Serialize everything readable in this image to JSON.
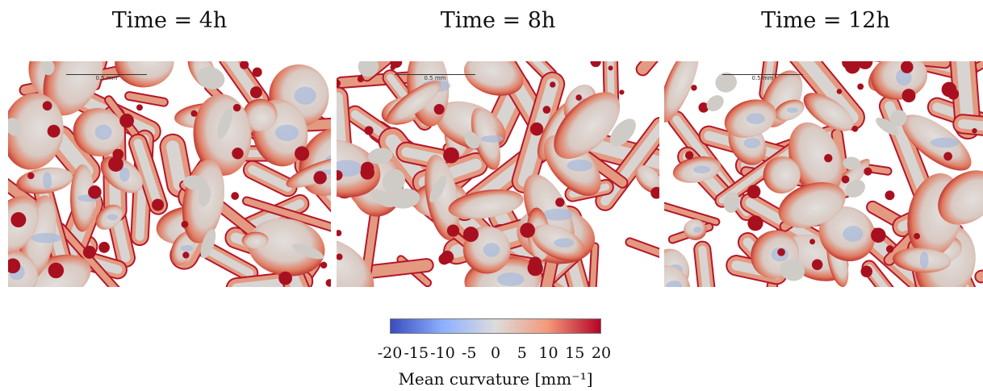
{
  "panels": [
    {
      "title": "Time = 4h",
      "scale_label": "0.5 mm"
    },
    {
      "title": "Time = 8h",
      "scale_label": "0.5 mm"
    },
    {
      "title": "Time = 12h",
      "scale_label": "0.5 mm"
    }
  ],
  "colorbar": {
    "label": "Mean curvature [mm⁻¹]",
    "ticks": [
      "-20",
      "-15",
      "-10",
      "-5",
      "0",
      "5",
      "10",
      "15",
      "20"
    ],
    "range": [
      -20,
      20
    ],
    "colors": {
      "low": "#3a4cc0",
      "mid": "#dcdcdc",
      "high": "#b40426"
    }
  }
}
